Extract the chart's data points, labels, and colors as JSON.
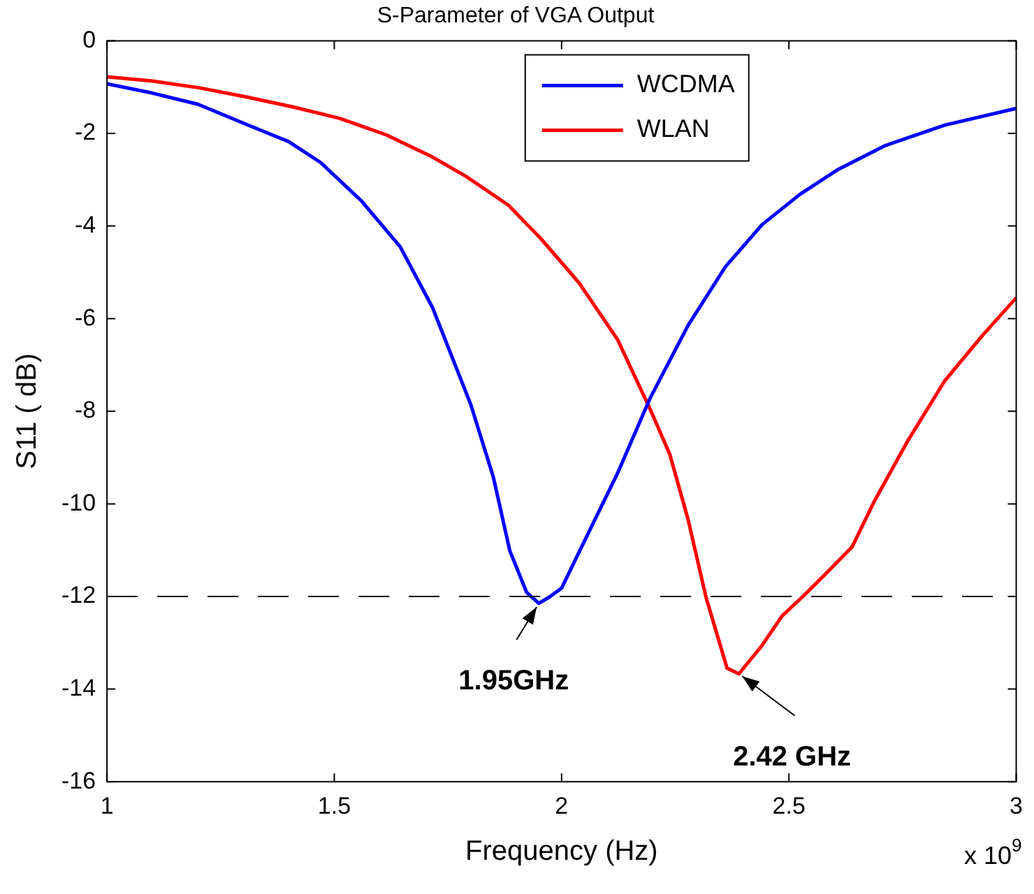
{
  "chart_data": {
    "type": "line",
    "title": "S-Parameter of VGA Output",
    "xlabel": "Frequency (Hz)",
    "ylabel": "S11 ( dB)",
    "xlim": [
      1,
      3
    ],
    "xticks": [
      1,
      1.5,
      2,
      2.5,
      3
    ],
    "ylim": [
      -16,
      0
    ],
    "yticks": [
      -16,
      -14,
      -12,
      -10,
      -8,
      -6,
      -4,
      -2,
      0
    ],
    "grid": false,
    "legend": "top",
    "marker": "none",
    "line_style": "solid",
    "ref_lines": [
      {
        "axis": "y",
        "value": -12,
        "color": "#000000",
        "line_style": "dashed"
      }
    ],
    "annotations": [
      {
        "text": "1.95GHz",
        "x": 1.95,
        "y": -12.15
      },
      {
        "text": "2.42 GHz",
        "x": 2.39,
        "y": -13.67
      },
      "x 10$^{9}$"
    ],
    "series": [
      {
        "name": "WCDMA",
        "color": "#0000ff",
        "x": [
          1.0,
          1.1,
          1.2,
          1.31,
          1.4,
          1.47,
          1.56,
          1.645,
          1.716,
          1.8,
          1.85,
          1.886,
          1.923,
          1.95,
          1.975,
          2.0,
          2.04,
          2.123,
          2.194,
          2.278,
          2.361,
          2.441,
          2.525,
          2.608,
          2.71,
          2.843,
          3.0
        ],
        "values": [
          -0.93,
          -1.13,
          -1.37,
          -1.82,
          -2.18,
          -2.63,
          -3.46,
          -4.45,
          -5.76,
          -7.85,
          -9.43,
          -11.01,
          -11.91,
          -12.15,
          -12.0,
          -11.82,
          -11.01,
          -9.34,
          -7.73,
          -6.15,
          -4.87,
          -3.97,
          -3.31,
          -2.78,
          -2.27,
          -1.82,
          -1.46
        ]
      },
      {
        "name": "WLAN",
        "color": "#ff0000",
        "x": [
          1.0,
          1.1,
          1.2,
          1.31,
          1.41,
          1.51,
          1.614,
          1.716,
          1.79,
          1.883,
          1.954,
          2.015,
          2.04,
          2.123,
          2.194,
          2.238,
          2.278,
          2.318,
          2.364,
          2.39,
          2.44,
          2.485,
          2.534,
          2.586,
          2.639,
          2.688,
          2.762,
          2.843,
          2.926,
          3.0
        ],
        "values": [
          -0.78,
          -0.87,
          -1.01,
          -1.22,
          -1.43,
          -1.67,
          -2.03,
          -2.51,
          -2.93,
          -3.55,
          -4.27,
          -4.96,
          -5.25,
          -6.45,
          -7.94,
          -8.93,
          -10.33,
          -12.03,
          -13.55,
          -13.67,
          -13.07,
          -12.42,
          -11.97,
          -11.46,
          -10.93,
          -9.94,
          -8.63,
          -7.34,
          -6.36,
          -5.55
        ]
      }
    ]
  }
}
